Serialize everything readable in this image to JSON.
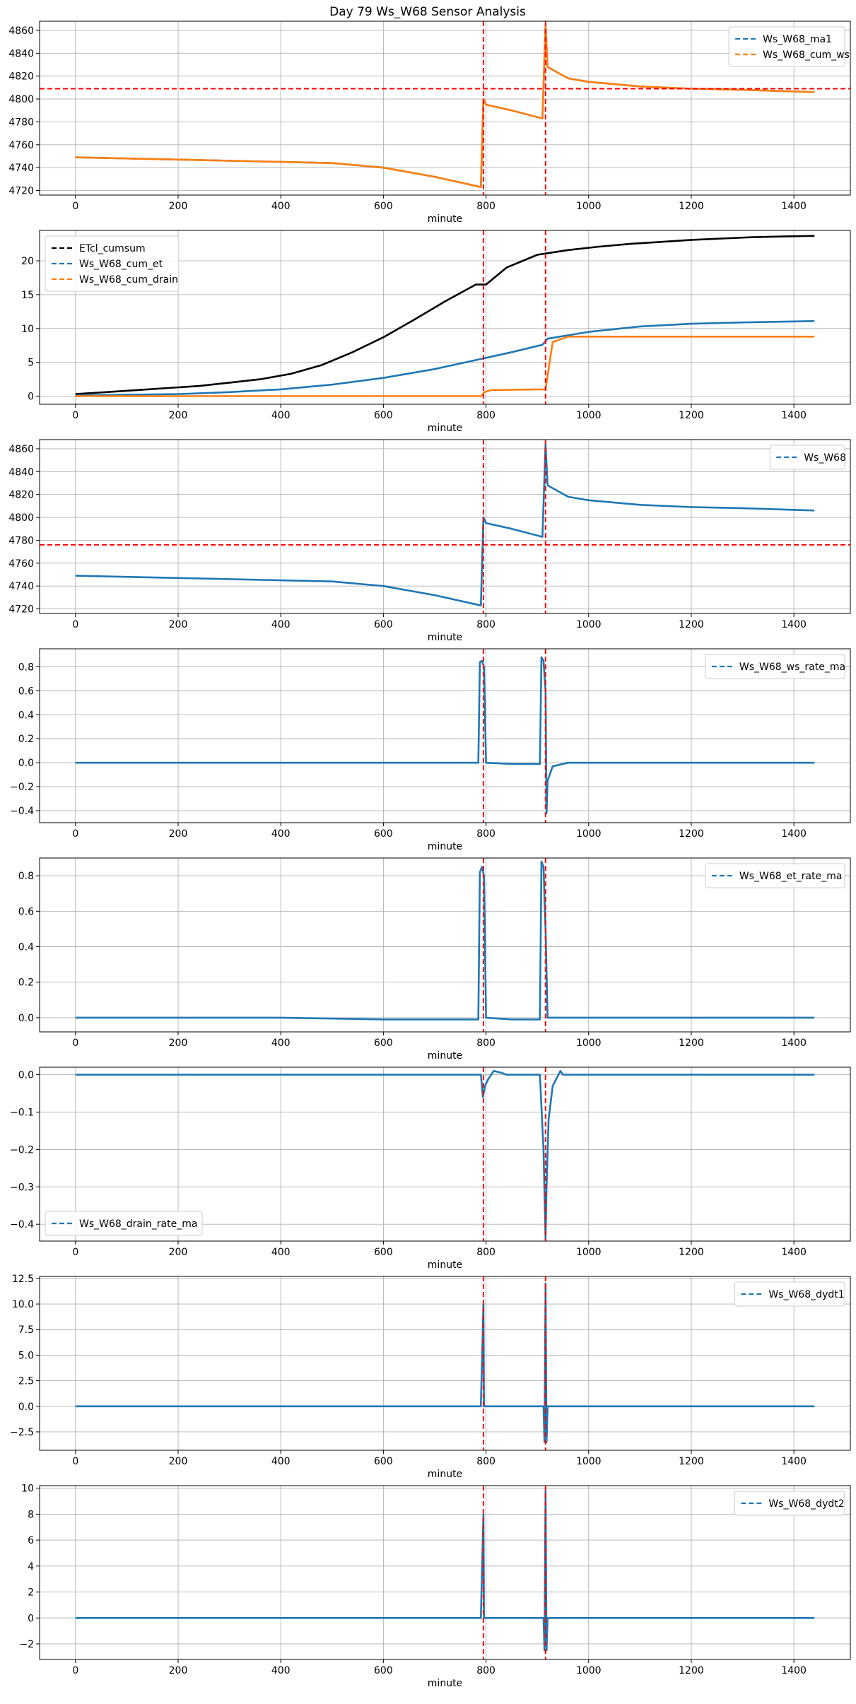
{
  "figure_title": "Day 79 Ws_W68 Sensor Analysis",
  "colors": {
    "blue": "#1f77b4",
    "orange": "#ff7f0e",
    "black": "#000000",
    "red": "#ff0000",
    "grid": "#b0b0b0"
  },
  "chart_data": [
    {
      "type": "line",
      "xlabel": "minute",
      "xlim": [
        -70,
        1510
      ],
      "ylim": [
        4716,
        4868
      ],
      "x_ticks": [
        0,
        200,
        400,
        600,
        800,
        1000,
        1200,
        1400
      ],
      "y_ticks": [
        4720,
        4740,
        4760,
        4780,
        4800,
        4820,
        4840,
        4860
      ],
      "legend": {
        "position": "top-right",
        "entries": [
          "Ws_W68_ma1",
          "Ws_W68_cum_ws"
        ]
      },
      "vlines": [
        795,
        916
      ],
      "hlines": [
        4809
      ],
      "series": [
        {
          "name": "Ws_W68_ma1",
          "color": "blue",
          "x": [
            0,
            200,
            400,
            500,
            600,
            700,
            790,
            795,
            800,
            850,
            910,
            916,
            920,
            960,
            1000,
            1100,
            1200,
            1300,
            1440
          ],
          "y": [
            4749,
            4747,
            4745,
            4744,
            4740,
            4732,
            4723,
            4800,
            4795,
            4790,
            4783,
            4864,
            4828,
            4818,
            4815,
            4811,
            4809,
            4808,
            4806
          ]
        },
        {
          "name": "Ws_W68_cum_ws",
          "color": "orange",
          "x": [
            0,
            200,
            400,
            500,
            600,
            700,
            790,
            795,
            800,
            850,
            910,
            916,
            920,
            960,
            1000,
            1100,
            1200,
            1300,
            1440
          ],
          "y": [
            4749,
            4747,
            4745,
            4744,
            4740,
            4732,
            4723,
            4800,
            4795,
            4790,
            4783,
            4864,
            4828,
            4818,
            4815,
            4811,
            4809,
            4808,
            4806
          ]
        }
      ]
    },
    {
      "type": "line",
      "xlabel": "minute",
      "xlim": [
        -70,
        1510
      ],
      "ylim": [
        -1.2,
        24.5
      ],
      "x_ticks": [
        0,
        200,
        400,
        600,
        800,
        1000,
        1200,
        1400
      ],
      "y_ticks": [
        0,
        5,
        10,
        15,
        20
      ],
      "legend": {
        "position": "top-left",
        "entries": [
          "ETcl_cumsum",
          "Ws_W68_cum_et",
          "Ws_W68_cum_drain"
        ]
      },
      "vlines": [
        795,
        916
      ],
      "hlines": [],
      "series": [
        {
          "name": "ETcl_cumsum",
          "color": "black",
          "x": [
            0,
            60,
            120,
            180,
            240,
            300,
            360,
            420,
            480,
            540,
            600,
            660,
            720,
            780,
            800,
            840,
            900,
            960,
            1020,
            1080,
            1140,
            1200,
            1260,
            1320,
            1380,
            1440
          ],
          "y": [
            0.3,
            0.6,
            0.9,
            1.2,
            1.5,
            2.0,
            2.5,
            3.3,
            4.6,
            6.5,
            8.7,
            11.3,
            14.0,
            16.5,
            16.5,
            19.0,
            20.9,
            21.6,
            22.1,
            22.5,
            22.8,
            23.1,
            23.3,
            23.5,
            23.6,
            23.7
          ]
        },
        {
          "name": "Ws_W68_cum_et",
          "color": "blue",
          "x": [
            0,
            200,
            300,
            400,
            500,
            600,
            700,
            790,
            850,
            910,
            920,
            960,
            1000,
            1100,
            1200,
            1300,
            1440
          ],
          "y": [
            0.1,
            0.3,
            0.6,
            1.0,
            1.7,
            2.7,
            4.0,
            5.5,
            6.5,
            7.6,
            8.5,
            9.0,
            9.5,
            10.3,
            10.7,
            10.9,
            11.1
          ]
        },
        {
          "name": "Ws_W68_cum_drain",
          "color": "orange",
          "x": [
            0,
            790,
            797,
            810,
            910,
            916,
            930,
            960,
            1000,
            1200,
            1440
          ],
          "y": [
            0,
            0,
            0.6,
            0.9,
            1.0,
            1.0,
            8.0,
            8.8,
            8.8,
            8.8,
            8.8
          ]
        }
      ]
    },
    {
      "type": "line",
      "xlabel": "minute",
      "xlim": [
        -70,
        1510
      ],
      "ylim": [
        4716,
        4868
      ],
      "x_ticks": [
        0,
        200,
        400,
        600,
        800,
        1000,
        1200,
        1400
      ],
      "y_ticks": [
        4720,
        4740,
        4760,
        4780,
        4800,
        4820,
        4840,
        4860
      ],
      "legend": {
        "position": "top-right",
        "entries": [
          "Ws_W68"
        ]
      },
      "vlines": [
        795,
        916
      ],
      "hlines": [
        4776
      ],
      "series": [
        {
          "name": "Ws_W68",
          "color": "blue",
          "x": [
            0,
            200,
            400,
            500,
            600,
            700,
            790,
            795,
            800,
            850,
            910,
            916,
            920,
            960,
            1000,
            1100,
            1200,
            1300,
            1440
          ],
          "y": [
            4749,
            4747,
            4745,
            4744,
            4740,
            4732,
            4723,
            4800,
            4795,
            4790,
            4783,
            4864,
            4828,
            4818,
            4815,
            4811,
            4809,
            4808,
            4806
          ]
        }
      ]
    },
    {
      "type": "line",
      "xlabel": "minute",
      "xlim": [
        -70,
        1510
      ],
      "ylim": [
        -0.5,
        0.95
      ],
      "x_ticks": [
        0,
        200,
        400,
        600,
        800,
        1000,
        1200,
        1400
      ],
      "y_ticks": [
        -0.4,
        -0.2,
        0.0,
        0.2,
        0.4,
        0.6,
        0.8
      ],
      "legend": {
        "position": "top-right",
        "entries": [
          "Ws_W68_ws_rate_ma"
        ]
      },
      "vlines": [
        795,
        916
      ],
      "hlines": [],
      "series": [
        {
          "name": "Ws_W68_ws_rate_ma",
          "color": "blue",
          "x": [
            0,
            200,
            400,
            600,
            785,
            788,
            792,
            796,
            800,
            850,
            905,
            908,
            912,
            916,
            918,
            920,
            930,
            960,
            1000,
            1200,
            1440
          ],
          "y": [
            0,
            0,
            0,
            0,
            0,
            0.84,
            0.85,
            0.8,
            0,
            -0.01,
            -0.01,
            0.88,
            0.85,
            0.6,
            -0.42,
            -0.15,
            -0.03,
            0,
            0,
            0,
            0
          ]
        }
      ]
    },
    {
      "type": "line",
      "xlabel": "minute",
      "xlim": [
        -70,
        1510
      ],
      "ylim": [
        -0.08,
        0.9
      ],
      "x_ticks": [
        0,
        200,
        400,
        600,
        800,
        1000,
        1200,
        1400
      ],
      "y_ticks": [
        0.0,
        0.2,
        0.4,
        0.6,
        0.8
      ],
      "legend": {
        "position": "top-right",
        "entries": [
          "Ws_W68_et_rate_ma"
        ]
      },
      "vlines": [
        795,
        916
      ],
      "hlines": [],
      "series": [
        {
          "name": "Ws_W68_et_rate_ma",
          "color": "blue",
          "x": [
            0,
            200,
            400,
            600,
            785,
            788,
            792,
            796,
            800,
            850,
            905,
            908,
            912,
            916,
            920,
            960,
            1000,
            1200,
            1440
          ],
          "y": [
            0,
            0,
            0,
            -0.01,
            -0.01,
            0.82,
            0.85,
            0.8,
            0,
            -0.01,
            -0.01,
            0.88,
            0.85,
            0.5,
            0,
            0,
            0,
            0,
            0
          ]
        }
      ]
    },
    {
      "type": "line",
      "xlabel": "minute",
      "xlim": [
        -70,
        1510
      ],
      "ylim": [
        -0.445,
        0.02
      ],
      "x_ticks": [
        0,
        200,
        400,
        600,
        800,
        1000,
        1200,
        1400
      ],
      "y_ticks": [
        -0.4,
        -0.3,
        -0.2,
        -0.1,
        0.0
      ],
      "legend": {
        "position": "bottom-left",
        "entries": [
          "Ws_W68_drain_rate_ma"
        ]
      },
      "vlines": [
        795,
        916
      ],
      "hlines": [],
      "series": [
        {
          "name": "Ws_W68_drain_rate_ma",
          "color": "blue",
          "x": [
            0,
            790,
            794,
            798,
            805,
            815,
            830,
            840,
            905,
            912,
            916,
            918,
            922,
            930,
            945,
            950,
            1000,
            1200,
            1440
          ],
          "y": [
            0,
            0,
            -0.06,
            -0.03,
            -0.01,
            0.01,
            0.005,
            0,
            0,
            -0.2,
            -0.44,
            -0.3,
            -0.12,
            -0.03,
            0.01,
            0,
            0,
            0,
            0
          ]
        }
      ]
    },
    {
      "type": "line",
      "xlabel": "minute",
      "xlim": [
        -70,
        1510
      ],
      "ylim": [
        -4.3,
        12.7
      ],
      "x_ticks": [
        0,
        200,
        400,
        600,
        800,
        1000,
        1200,
        1400
      ],
      "y_ticks": [
        -2.5,
        0.0,
        2.5,
        5.0,
        7.5,
        10.0,
        12.5
      ],
      "legend": {
        "position": "top-right",
        "entries": [
          "Ws_W68_dydt1"
        ]
      },
      "vlines": [
        795,
        916
      ],
      "hlines": [],
      "series": [
        {
          "name": "Ws_W68_dydt1",
          "color": "blue",
          "x": [
            0,
            790,
            795,
            796,
            800,
            912,
            914,
            916,
            918,
            920,
            1440
          ],
          "y": [
            0,
            0,
            10,
            0,
            0,
            0,
            -3.5,
            12,
            -3.5,
            0,
            0
          ]
        }
      ]
    },
    {
      "type": "line",
      "xlabel": "minute",
      "xlim": [
        -70,
        1510
      ],
      "ylim": [
        -3.2,
        10.2
      ],
      "x_ticks": [
        0,
        200,
        400,
        600,
        800,
        1000,
        1200,
        1400
      ],
      "y_ticks": [
        -2,
        0,
        2,
        4,
        6,
        8,
        10
      ],
      "legend": {
        "position": "top-right",
        "entries": [
          "Ws_W68_dydt2"
        ]
      },
      "vlines": [
        795,
        916
      ],
      "hlines": [],
      "series": [
        {
          "name": "Ws_W68_dydt2",
          "color": "blue",
          "x": [
            0,
            790,
            795,
            796,
            800,
            912,
            914,
            916,
            918,
            920,
            1440
          ],
          "y": [
            0,
            0,
            8,
            0,
            0,
            0,
            -2.5,
            9.8,
            -2.5,
            0,
            0
          ]
        }
      ]
    }
  ]
}
